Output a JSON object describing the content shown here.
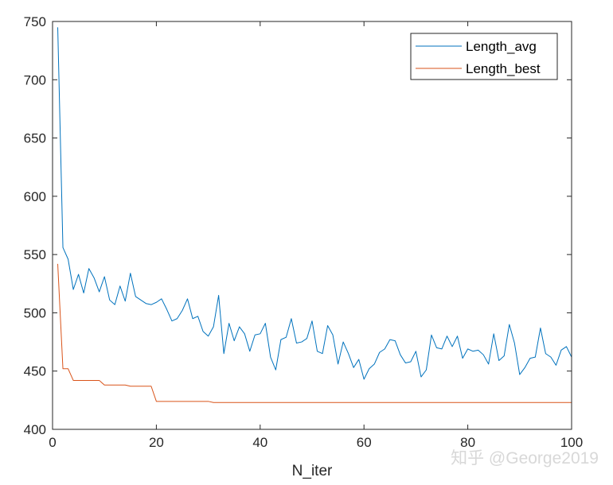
{
  "chart_data": {
    "type": "line",
    "xlabel": "N_iter",
    "ylabel": "",
    "title": "",
    "xlim": [
      0,
      100
    ],
    "ylim": [
      400,
      750
    ],
    "xticks": [
      0,
      20,
      40,
      60,
      80,
      100
    ],
    "yticks": [
      400,
      450,
      500,
      550,
      600,
      650,
      700,
      750
    ],
    "grid": false,
    "legend_position": "top-right",
    "x": [
      1,
      2,
      3,
      4,
      5,
      6,
      7,
      8,
      9,
      10,
      11,
      12,
      13,
      14,
      15,
      16,
      17,
      18,
      19,
      20,
      21,
      22,
      23,
      24,
      25,
      26,
      27,
      28,
      29,
      30,
      31,
      32,
      33,
      34,
      35,
      36,
      37,
      38,
      39,
      40,
      41,
      42,
      43,
      44,
      45,
      46,
      47,
      48,
      49,
      50,
      51,
      52,
      53,
      54,
      55,
      56,
      57,
      58,
      59,
      60,
      61,
      62,
      63,
      64,
      65,
      66,
      67,
      68,
      69,
      70,
      71,
      72,
      73,
      74,
      75,
      76,
      77,
      78,
      79,
      80,
      81,
      82,
      83,
      84,
      85,
      86,
      87,
      88,
      89,
      90,
      91,
      92,
      93,
      94,
      95,
      96,
      97,
      98,
      99,
      100
    ],
    "series": [
      {
        "name": "Length_avg",
        "color": "#0072bd",
        "values": [
          745,
          556,
          546,
          520,
          533,
          517,
          538,
          530,
          518,
          531,
          511,
          507,
          523,
          510,
          534,
          514,
          511,
          508,
          507,
          509,
          512,
          503,
          493,
          495,
          502,
          512,
          495,
          497,
          484,
          480,
          488,
          515,
          465,
          491,
          476,
          488,
          482,
          467,
          481,
          482,
          491,
          462,
          451,
          477,
          479,
          495,
          474,
          475,
          478,
          493,
          467,
          465,
          489,
          481,
          456,
          475,
          465,
          453,
          460,
          443,
          452,
          456,
          466,
          469,
          477,
          476,
          464,
          457,
          458,
          467,
          445,
          451,
          481,
          470,
          469,
          480,
          471,
          480,
          461,
          469,
          467,
          468,
          464,
          456,
          482,
          459,
          463,
          490,
          474,
          447,
          453,
          461,
          462,
          487,
          465,
          462,
          455,
          468,
          471,
          462
        ]
      },
      {
        "name": "Length_best",
        "color": "#d95319",
        "values": [
          542,
          452,
          452,
          442,
          442,
          442,
          442,
          442,
          442,
          438,
          438,
          438,
          438,
          438,
          437,
          437,
          437,
          437,
          437,
          424,
          424,
          424,
          424,
          424,
          424,
          424,
          424,
          424,
          424,
          424,
          423,
          423,
          423,
          423,
          423,
          423,
          423,
          423,
          423,
          423,
          423,
          423,
          423,
          423,
          423,
          423,
          423,
          423,
          423,
          423,
          423,
          423,
          423,
          423,
          423,
          423,
          423,
          423,
          423,
          423,
          423,
          423,
          423,
          423,
          423,
          423,
          423,
          423,
          423,
          423,
          423,
          423,
          423,
          423,
          423,
          423,
          423,
          423,
          423,
          423,
          423,
          423,
          423,
          423,
          423,
          423,
          423,
          423,
          423,
          423,
          423,
          423,
          423,
          423,
          423,
          423,
          423,
          423,
          423,
          423
        ]
      }
    ]
  },
  "watermark": "知乎 @George2019"
}
